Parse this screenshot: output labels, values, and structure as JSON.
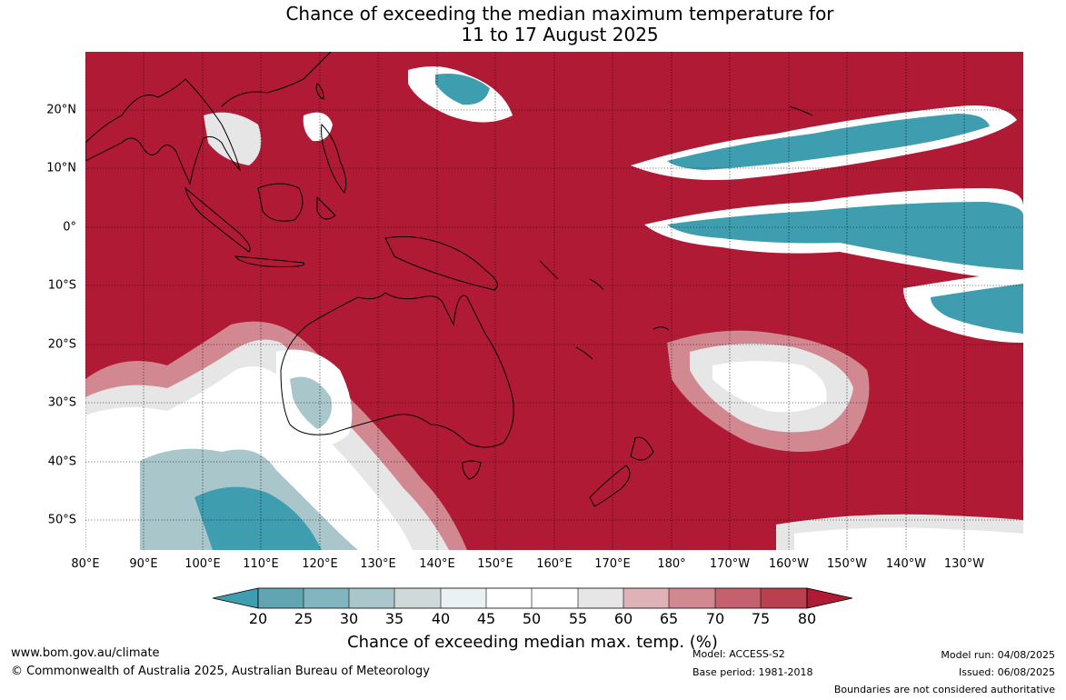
{
  "title": {
    "line1": "Chance of exceeding the median maximum temperature for",
    "line2": "11 to 17 August 2025"
  },
  "map": {
    "background_color": "#b01a35",
    "lat_labels": [
      "20°N",
      "10°N",
      "0°",
      "10°S",
      "20°S",
      "30°S",
      "40°S",
      "50°S"
    ],
    "lon_labels": [
      "80°E",
      "90°E",
      "100°E",
      "110°E",
      "120°E",
      "130°E",
      "140°E",
      "150°E",
      "160°E",
      "170°E",
      "180°",
      "170°W",
      "160°W",
      "150°W",
      "140°W",
      "130°W"
    ]
  },
  "colorbar": {
    "ticks": [
      "20",
      "25",
      "30",
      "35",
      "40",
      "45",
      "50",
      "55",
      "60",
      "65",
      "70",
      "75",
      "80"
    ],
    "colors": {
      "below20": "#3e9eb0",
      "20-25": "#61a5b3",
      "25-30": "#82b6bf",
      "30-35": "#a9c7cb",
      "35-40": "#d0d9da",
      "40-45": "#eaf1f2",
      "45-50": "#ffffff",
      "50-55": "#ffffff",
      "55-60": "#e6e6e6",
      "60-65": "#dfb2b7",
      "65-70": "#d28890",
      "70-75": "#c5616f",
      "75-80": "#b9414f",
      "above80": "#b01a35"
    },
    "label": "Chance of exceeding median max. temp. (%)"
  },
  "footer": {
    "website": "www.bom.gov.au/climate",
    "copyright": "© Commonwealth of Australia 2025, Australian Bureau of Meteorology",
    "model": "Model: ACCESS-S2",
    "base_period": "Base period: 1981-2018",
    "model_run": "Model run: 04/08/2025",
    "issued": "Issued: 06/08/2025",
    "disclaimer": "Boundaries are not considered authoritative"
  }
}
